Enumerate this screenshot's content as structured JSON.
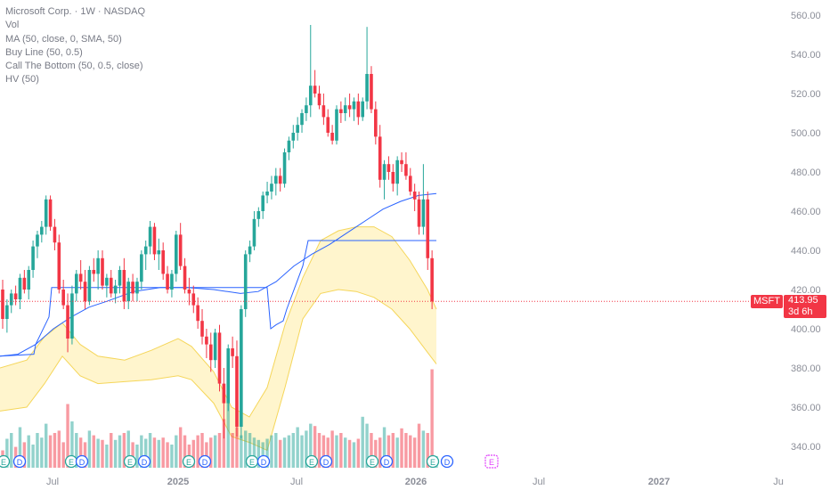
{
  "legend": {
    "title": "Microsoft Corp. · 1W · NASDAQ",
    "lines": [
      "Vol",
      "MA (50, close, 0, SMA, 50)",
      "Buy Line (50, 0.5)",
      "Call The Bottom (50, 0.5, close)",
      "HV (50)"
    ]
  },
  "price_axis": {
    "ticks": [
      "560.00",
      "540.00",
      "520.00",
      "500.00",
      "480.00",
      "460.00",
      "440.00",
      "420.00",
      "400.00",
      "380.00",
      "360.00",
      "340.00"
    ]
  },
  "time_axis": {
    "ticks": [
      "Jul",
      "2025",
      "Jul",
      "2026",
      "Jul",
      "2027",
      "Ju"
    ]
  },
  "last_price": {
    "symbol": "MSFT",
    "price": "413.95",
    "countdown": "3d 6h"
  },
  "colors": {
    "up": "#26a69a",
    "down": "#f23645",
    "ma": "#2962ff",
    "band": "#f5d65a",
    "band_fill": "#fff3c4",
    "earnings": "#26a69a",
    "dividend": "#2962ff",
    "future_event": "#e040fb"
  },
  "events": {
    "earnings_label": "E",
    "dividend_label": "D",
    "future_earnings_label": "E"
  },
  "chart_data": {
    "type": "candlestick",
    "symbol": "MSFT",
    "interval": "1W",
    "exchange": "NASDAQ",
    "ylim": [
      330,
      565
    ],
    "y_ticks": [
      560,
      540,
      520,
      500,
      480,
      460,
      440,
      420,
      400,
      380,
      360,
      340
    ],
    "x_ticks": [
      "Jul",
      "2025",
      "Jul",
      "2026",
      "Jul",
      "2027",
      "Ju"
    ],
    "last_close": 413.95,
    "candles": [
      {
        "o": 420,
        "h": 425,
        "l": 400,
        "c": 405
      },
      {
        "o": 405,
        "h": 415,
        "l": 398,
        "c": 412
      },
      {
        "o": 412,
        "h": 420,
        "l": 408,
        "c": 418
      },
      {
        "o": 418,
        "h": 422,
        "l": 412,
        "c": 415
      },
      {
        "o": 415,
        "h": 428,
        "l": 410,
        "c": 426
      },
      {
        "o": 426,
        "h": 430,
        "l": 418,
        "c": 420
      },
      {
        "o": 420,
        "h": 432,
        "l": 415,
        "c": 430
      },
      {
        "o": 430,
        "h": 445,
        "l": 426,
        "c": 442
      },
      {
        "o": 442,
        "h": 450,
        "l": 436,
        "c": 448
      },
      {
        "o": 448,
        "h": 455,
        "l": 444,
        "c": 452
      },
      {
        "o": 452,
        "h": 468,
        "l": 448,
        "c": 466
      },
      {
        "o": 466,
        "h": 468,
        "l": 450,
        "c": 452
      },
      {
        "o": 452,
        "h": 456,
        "l": 440,
        "c": 444
      },
      {
        "o": 444,
        "h": 448,
        "l": 418,
        "c": 420
      },
      {
        "o": 420,
        "h": 425,
        "l": 410,
        "c": 412
      },
      {
        "o": 412,
        "h": 418,
        "l": 388,
        "c": 395
      },
      {
        "o": 395,
        "h": 422,
        "l": 392,
        "c": 418
      },
      {
        "o": 418,
        "h": 430,
        "l": 414,
        "c": 428
      },
      {
        "o": 428,
        "h": 435,
        "l": 420,
        "c": 424
      },
      {
        "o": 424,
        "h": 430,
        "l": 410,
        "c": 414
      },
      {
        "o": 414,
        "h": 432,
        "l": 412,
        "c": 430
      },
      {
        "o": 430,
        "h": 436,
        "l": 424,
        "c": 428
      },
      {
        "o": 428,
        "h": 440,
        "l": 420,
        "c": 436
      },
      {
        "o": 436,
        "h": 440,
        "l": 420,
        "c": 422
      },
      {
        "o": 422,
        "h": 428,
        "l": 416,
        "c": 426
      },
      {
        "o": 426,
        "h": 430,
        "l": 416,
        "c": 418
      },
      {
        "o": 418,
        "h": 425,
        "l": 413,
        "c": 422
      },
      {
        "o": 422,
        "h": 432,
        "l": 418,
        "c": 430
      },
      {
        "o": 430,
        "h": 436,
        "l": 410,
        "c": 414
      },
      {
        "o": 414,
        "h": 426,
        "l": 410,
        "c": 424
      },
      {
        "o": 424,
        "h": 428,
        "l": 414,
        "c": 418
      },
      {
        "o": 418,
        "h": 426,
        "l": 414,
        "c": 424
      },
      {
        "o": 424,
        "h": 440,
        "l": 420,
        "c": 438
      },
      {
        "o": 438,
        "h": 445,
        "l": 430,
        "c": 442
      },
      {
        "o": 442,
        "h": 455,
        "l": 438,
        "c": 452
      },
      {
        "o": 452,
        "h": 454,
        "l": 435,
        "c": 438
      },
      {
        "o": 438,
        "h": 446,
        "l": 430,
        "c": 440
      },
      {
        "o": 440,
        "h": 444,
        "l": 425,
        "c": 428
      },
      {
        "o": 428,
        "h": 432,
        "l": 418,
        "c": 420
      },
      {
        "o": 420,
        "h": 430,
        "l": 416,
        "c": 428
      },
      {
        "o": 428,
        "h": 450,
        "l": 424,
        "c": 448
      },
      {
        "o": 448,
        "h": 454,
        "l": 430,
        "c": 432
      },
      {
        "o": 432,
        "h": 436,
        "l": 418,
        "c": 420
      },
      {
        "o": 420,
        "h": 426,
        "l": 412,
        "c": 418
      },
      {
        "o": 418,
        "h": 422,
        "l": 408,
        "c": 412
      },
      {
        "o": 412,
        "h": 416,
        "l": 400,
        "c": 404
      },
      {
        "o": 404,
        "h": 410,
        "l": 392,
        "c": 396
      },
      {
        "o": 396,
        "h": 400,
        "l": 385,
        "c": 392
      },
      {
        "o": 392,
        "h": 398,
        "l": 378,
        "c": 384
      },
      {
        "o": 384,
        "h": 400,
        "l": 380,
        "c": 398
      },
      {
        "o": 398,
        "h": 402,
        "l": 368,
        "c": 372
      },
      {
        "o": 372,
        "h": 380,
        "l": 344,
        "c": 362
      },
      {
        "o": 362,
        "h": 392,
        "l": 358,
        "c": 390
      },
      {
        "o": 390,
        "h": 396,
        "l": 380,
        "c": 386
      },
      {
        "o": 386,
        "h": 394,
        "l": 345,
        "c": 350
      },
      {
        "o": 350,
        "h": 412,
        "l": 344,
        "c": 410
      },
      {
        "o": 410,
        "h": 440,
        "l": 406,
        "c": 438
      },
      {
        "o": 438,
        "h": 445,
        "l": 434,
        "c": 442
      },
      {
        "o": 442,
        "h": 460,
        "l": 440,
        "c": 456
      },
      {
        "o": 456,
        "h": 462,
        "l": 452,
        "c": 460
      },
      {
        "o": 460,
        "h": 470,
        "l": 456,
        "c": 468
      },
      {
        "o": 468,
        "h": 475,
        "l": 464,
        "c": 470
      },
      {
        "o": 470,
        "h": 478,
        "l": 466,
        "c": 474
      },
      {
        "o": 474,
        "h": 482,
        "l": 468,
        "c": 478
      },
      {
        "o": 478,
        "h": 482,
        "l": 470,
        "c": 474
      },
      {
        "o": 474,
        "h": 492,
        "l": 472,
        "c": 490
      },
      {
        "o": 490,
        "h": 498,
        "l": 486,
        "c": 496
      },
      {
        "o": 496,
        "h": 504,
        "l": 492,
        "c": 500
      },
      {
        "o": 500,
        "h": 508,
        "l": 496,
        "c": 504
      },
      {
        "o": 504,
        "h": 512,
        "l": 500,
        "c": 510
      },
      {
        "o": 510,
        "h": 518,
        "l": 506,
        "c": 514
      },
      {
        "o": 514,
        "h": 555,
        "l": 508,
        "c": 524
      },
      {
        "o": 524,
        "h": 532,
        "l": 518,
        "c": 520
      },
      {
        "o": 520,
        "h": 524,
        "l": 512,
        "c": 514
      },
      {
        "o": 514,
        "h": 520,
        "l": 504,
        "c": 508
      },
      {
        "o": 508,
        "h": 512,
        "l": 498,
        "c": 500
      },
      {
        "o": 500,
        "h": 504,
        "l": 494,
        "c": 496
      },
      {
        "o": 496,
        "h": 514,
        "l": 494,
        "c": 512
      },
      {
        "o": 512,
        "h": 516,
        "l": 505,
        "c": 510
      },
      {
        "o": 510,
        "h": 518,
        "l": 506,
        "c": 514
      },
      {
        "o": 514,
        "h": 520,
        "l": 508,
        "c": 512
      },
      {
        "o": 512,
        "h": 518,
        "l": 506,
        "c": 516
      },
      {
        "o": 516,
        "h": 520,
        "l": 504,
        "c": 508
      },
      {
        "o": 508,
        "h": 518,
        "l": 506,
        "c": 516
      },
      {
        "o": 516,
        "h": 554,
        "l": 512,
        "c": 530
      },
      {
        "o": 530,
        "h": 534,
        "l": 510,
        "c": 512
      },
      {
        "o": 512,
        "h": 516,
        "l": 494,
        "c": 498
      },
      {
        "o": 498,
        "h": 504,
        "l": 472,
        "c": 476
      },
      {
        "o": 476,
        "h": 486,
        "l": 466,
        "c": 484
      },
      {
        "o": 484,
        "h": 488,
        "l": 476,
        "c": 480
      },
      {
        "o": 480,
        "h": 484,
        "l": 470,
        "c": 474
      },
      {
        "o": 474,
        "h": 488,
        "l": 468,
        "c": 486
      },
      {
        "o": 486,
        "h": 490,
        "l": 480,
        "c": 484
      },
      {
        "o": 484,
        "h": 490,
        "l": 476,
        "c": 478
      },
      {
        "o": 478,
        "h": 482,
        "l": 468,
        "c": 470
      },
      {
        "o": 470,
        "h": 474,
        "l": 460,
        "c": 466
      },
      {
        "o": 466,
        "h": 470,
        "l": 448,
        "c": 452
      },
      {
        "o": 452,
        "h": 484,
        "l": 448,
        "c": 466
      },
      {
        "o": 466,
        "h": 470,
        "l": 430,
        "c": 436
      },
      {
        "o": 436,
        "h": 440,
        "l": 410,
        "c": 413.95
      }
    ],
    "volume_relative": [
      0.15,
      0.25,
      0.3,
      0.18,
      0.35,
      0.22,
      0.28,
      0.2,
      0.3,
      0.26,
      0.38,
      0.28,
      0.3,
      0.32,
      0.22,
      0.55,
      0.4,
      0.3,
      0.26,
      0.22,
      0.32,
      0.28,
      0.25,
      0.24,
      0.2,
      0.3,
      0.24,
      0.28,
      0.3,
      0.32,
      0.22,
      0.2,
      0.28,
      0.25,
      0.3,
      0.26,
      0.24,
      0.26,
      0.22,
      0.2,
      0.28,
      0.35,
      0.28,
      0.2,
      0.24,
      0.28,
      0.3,
      0.22,
      0.26,
      0.28,
      0.3,
      0.42,
      0.6,
      0.3,
      0.35,
      0.28,
      0.32,
      0.3,
      0.26,
      0.24,
      0.22,
      0.25,
      0.28,
      0.3,
      0.24,
      0.26,
      0.28,
      0.3,
      0.35,
      0.28,
      0.32,
      0.38,
      0.36,
      0.3,
      0.28,
      0.26,
      0.32,
      0.28,
      0.3,
      0.26,
      0.24,
      0.22,
      0.25,
      0.44,
      0.38,
      0.3,
      0.24,
      0.26,
      0.35,
      0.28,
      0.3,
      0.26,
      0.34,
      0.3,
      0.28,
      0.26,
      0.38,
      0.32,
      0.3,
      0.85,
      0.1
    ],
    "ma50": [
      [
        0,
        386
      ],
      [
        20,
        387
      ],
      [
        40,
        392
      ],
      [
        60,
        400
      ],
      [
        80,
        406
      ],
      [
        100,
        411
      ],
      [
        120,
        414
      ],
      [
        150,
        419
      ],
      [
        180,
        421
      ],
      [
        210,
        421
      ],
      [
        240,
        420
      ],
      [
        270,
        418
      ],
      [
        290,
        419
      ],
      [
        310,
        424
      ],
      [
        330,
        432
      ],
      [
        350,
        438
      ],
      [
        370,
        443
      ],
      [
        390,
        449
      ],
      [
        410,
        455
      ],
      [
        430,
        461
      ],
      [
        450,
        465
      ],
      [
        470,
        468
      ],
      [
        490,
        469
      ]
    ],
    "buy_line": [
      [
        0,
        386
      ],
      [
        38,
        387
      ],
      [
        40,
        392
      ],
      [
        55,
        406
      ],
      [
        58,
        421
      ],
      [
        300,
        421
      ],
      [
        304,
        400
      ],
      [
        310,
        402
      ],
      [
        318,
        404
      ],
      [
        322,
        410
      ],
      [
        340,
        432
      ],
      [
        346,
        445
      ],
      [
        490,
        445
      ]
    ],
    "call_the_bottom_band": {
      "upper": [
        [
          0,
          380
        ],
        [
          30,
          384
        ],
        [
          50,
          396
        ],
        [
          70,
          403
        ],
        [
          90,
          392
        ],
        [
          110,
          386
        ],
        [
          140,
          384
        ],
        [
          170,
          389
        ],
        [
          200,
          395
        ],
        [
          215,
          391
        ],
        [
          240,
          378
        ],
        [
          260,
          360
        ],
        [
          280,
          355
        ],
        [
          300,
          370
        ],
        [
          320,
          402
        ],
        [
          340,
          426
        ],
        [
          360,
          445
        ],
        [
          380,
          450
        ],
        [
          400,
          452
        ],
        [
          420,
          452
        ],
        [
          440,
          447
        ],
        [
          460,
          435
        ],
        [
          480,
          420
        ],
        [
          490,
          410
        ]
      ],
      "lower": [
        [
          0,
          358
        ],
        [
          30,
          360
        ],
        [
          50,
          372
        ],
        [
          70,
          386
        ],
        [
          90,
          376
        ],
        [
          110,
          372
        ],
        [
          140,
          373
        ],
        [
          170,
          374
        ],
        [
          200,
          376
        ],
        [
          215,
          374
        ],
        [
          240,
          362
        ],
        [
          260,
          345
        ],
        [
          280,
          342
        ],
        [
          300,
          338
        ],
        [
          320,
          370
        ],
        [
          340,
          405
        ],
        [
          360,
          418
        ],
        [
          380,
          420
        ],
        [
          400,
          419
        ],
        [
          420,
          416
        ],
        [
          440,
          410
        ],
        [
          460,
          400
        ],
        [
          480,
          388
        ],
        [
          490,
          382
        ]
      ]
    },
    "earnings_markers": [
      "Apr 2024",
      "Jul 2024",
      "Oct 2024",
      "Jan 2025",
      "Apr 2025",
      "Jul 2025",
      "Oct 2025",
      "Jan 2026",
      "Apr 2026"
    ],
    "dividend_markers": [
      "May 2024",
      "Aug 2024",
      "Nov 2024",
      "Feb 2025",
      "May 2025",
      "Aug 2025",
      "Nov 2025",
      "Feb 2026"
    ]
  }
}
